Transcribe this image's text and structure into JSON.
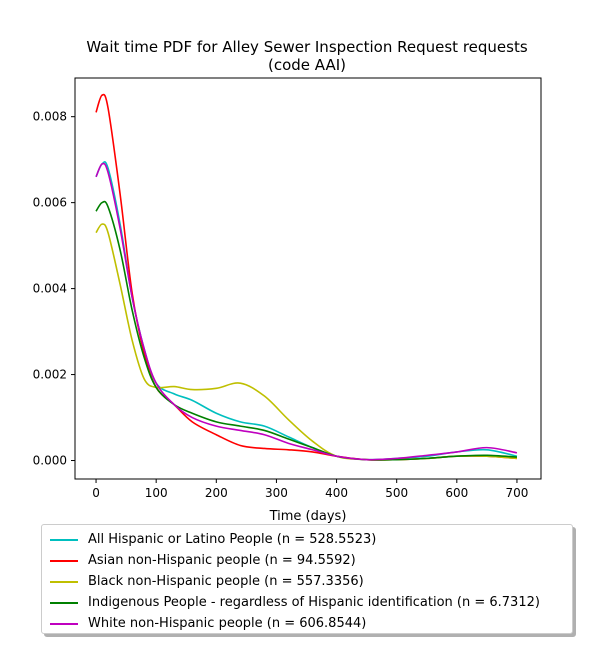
{
  "chart_data": {
    "type": "line",
    "title_line1": "Wait time PDF for Alley Sewer Inspection Request  requests",
    "title_line2": "(code AAI)",
    "xlabel": "Time (days)",
    "ylabel": "",
    "xlim": [
      -35,
      740
    ],
    "ylim": [
      -0.00043,
      0.0089
    ],
    "x_ticks": [
      "0",
      "100",
      "200",
      "300",
      "400",
      "500",
      "600",
      "700"
    ],
    "y_ticks": [
      "0.000",
      "0.002",
      "0.004",
      "0.006",
      "0.008"
    ],
    "legend_position": "below",
    "x": [
      0,
      10,
      20,
      40,
      60,
      80,
      100,
      130,
      160,
      200,
      240,
      280,
      320,
      360,
      400,
      450,
      500,
      550,
      600,
      650,
      700
    ],
    "series": [
      {
        "name": "All Hispanic or Latino People (n = 528.5523)",
        "color": "#00bfbf",
        "values": [
          0.0066,
          0.0069,
          0.0068,
          0.0055,
          0.0038,
          0.0026,
          0.0018,
          0.00155,
          0.0014,
          0.0011,
          0.0009,
          0.0008,
          0.00055,
          0.0003,
          0.0001,
          2e-05,
          5e-05,
          0.0001,
          0.0002,
          0.00025,
          0.0001
        ]
      },
      {
        "name": "Asian non-Hispanic people (n = 94.5592)",
        "color": "#ff0000",
        "values": [
          0.0081,
          0.0085,
          0.0082,
          0.0062,
          0.0039,
          0.0025,
          0.0017,
          0.0013,
          0.0009,
          0.0006,
          0.00035,
          0.00028,
          0.00025,
          0.0002,
          0.0001,
          2e-05,
          2e-05,
          5e-05,
          0.0001,
          0.0001,
          5e-05
        ]
      },
      {
        "name": "Black non-Hispanic people (n = 557.3356)",
        "color": "#bfbf00",
        "values": [
          0.0053,
          0.0055,
          0.0053,
          0.0041,
          0.0028,
          0.0019,
          0.0017,
          0.00172,
          0.00165,
          0.00168,
          0.0018,
          0.0015,
          0.00095,
          0.00045,
          0.0001,
          2e-05,
          2e-05,
          5e-05,
          0.0001,
          0.0001,
          5e-05
        ]
      },
      {
        "name": "Indigenous People - regardless of Hispanic identification (n = 6.7312)",
        "color": "#008000",
        "values": [
          0.0058,
          0.006,
          0.0059,
          0.0049,
          0.0035,
          0.0024,
          0.0017,
          0.0013,
          0.0011,
          0.0009,
          0.0008,
          0.0007,
          0.0005,
          0.0003,
          0.0001,
          2e-05,
          2e-05,
          5e-05,
          0.0001,
          0.00012,
          8e-05
        ]
      },
      {
        "name": "White non-Hispanic people (n = 606.8544)",
        "color": "#bf00bf",
        "values": [
          0.0066,
          0.0069,
          0.0067,
          0.0054,
          0.0038,
          0.0026,
          0.0018,
          0.0013,
          0.001,
          0.0008,
          0.0007,
          0.0006,
          0.0004,
          0.00025,
          0.0001,
          2e-05,
          5e-05,
          0.00012,
          0.0002,
          0.0003,
          0.00018
        ]
      }
    ]
  }
}
